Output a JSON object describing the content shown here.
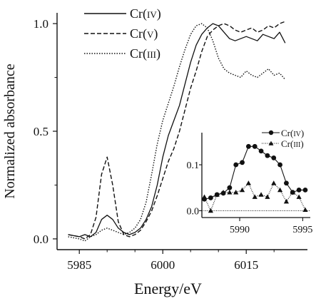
{
  "chart_data": [
    {
      "type": "line",
      "role": "main",
      "xlabel": "Energy/eV",
      "ylabel": "Normalized absorbance",
      "xlim": [
        5981,
        6026
      ],
      "ylim": [
        -0.05,
        1.05
      ],
      "x_ticks": [
        5985,
        6000,
        6015
      ],
      "x_tick_labels": [
        "5985",
        "6000",
        "6015"
      ],
      "y_ticks": [
        0.0,
        0.5,
        1.0
      ],
      "y_tick_labels": [
        "0.0",
        "0.5",
        "1.0"
      ],
      "grid": false,
      "legend_position": "top-left",
      "series": [
        {
          "name": "Cr(IV)",
          "label_main": "Cr(",
          "label_roman": "IV",
          "label_end": ")",
          "style": "solid",
          "points": [
            [
              5983,
              0.02
            ],
            [
              5985,
              0.01
            ],
            [
              5986,
              0.02
            ],
            [
              5987,
              0.01
            ],
            [
              5988,
              0.03
            ],
            [
              5989,
              0.09
            ],
            [
              5990,
              0.11
            ],
            [
              5991,
              0.09
            ],
            [
              5992,
              0.05
            ],
            [
              5993,
              0.03
            ],
            [
              5994,
              0.02
            ],
            [
              5995,
              0.03
            ],
            [
              5996,
              0.05
            ],
            [
              5997,
              0.09
            ],
            [
              5998,
              0.15
            ],
            [
              5999,
              0.25
            ],
            [
              6000,
              0.38
            ],
            [
              6001,
              0.48
            ],
            [
              6002,
              0.55
            ],
            [
              6003,
              0.62
            ],
            [
              6004,
              0.72
            ],
            [
              6005,
              0.82
            ],
            [
              6006,
              0.9
            ],
            [
              6007,
              0.95
            ],
            [
              6008,
              0.98
            ],
            [
              6009,
              1.0
            ],
            [
              6010,
              0.99
            ],
            [
              6011,
              0.96
            ],
            [
              6012,
              0.93
            ],
            [
              6013,
              0.92
            ],
            [
              6014,
              0.93
            ],
            [
              6015,
              0.94
            ],
            [
              6016,
              0.93
            ],
            [
              6017,
              0.92
            ],
            [
              6018,
              0.95
            ],
            [
              6019,
              0.94
            ],
            [
              6020,
              0.93
            ],
            [
              6021,
              0.96
            ],
            [
              6022,
              0.91
            ]
          ]
        },
        {
          "name": "Cr(V)",
          "label_main": "Cr(",
          "label_roman": "V",
          "label_end": ")",
          "style": "dashed",
          "points": [
            [
              5983,
              0.02
            ],
            [
              5985,
              0.01
            ],
            [
              5986,
              0.0
            ],
            [
              5987,
              0.02
            ],
            [
              5988,
              0.1
            ],
            [
              5989,
              0.3
            ],
            [
              5990,
              0.38
            ],
            [
              5991,
              0.25
            ],
            [
              5992,
              0.08
            ],
            [
              5993,
              0.02
            ],
            [
              5994,
              0.01
            ],
            [
              5995,
              0.02
            ],
            [
              5996,
              0.04
            ],
            [
              5997,
              0.08
            ],
            [
              5998,
              0.13
            ],
            [
              5999,
              0.2
            ],
            [
              6000,
              0.28
            ],
            [
              6001,
              0.36
            ],
            [
              6002,
              0.42
            ],
            [
              6003,
              0.5
            ],
            [
              6004,
              0.6
            ],
            [
              6005,
              0.7
            ],
            [
              6006,
              0.78
            ],
            [
              6007,
              0.87
            ],
            [
              6008,
              0.94
            ],
            [
              6009,
              0.97
            ],
            [
              6010,
              0.99
            ],
            [
              6011,
              1.0
            ],
            [
              6012,
              0.99
            ],
            [
              6013,
              0.97
            ],
            [
              6014,
              0.96
            ],
            [
              6015,
              0.97
            ],
            [
              6016,
              0.98
            ],
            [
              6017,
              0.96
            ],
            [
              6018,
              0.97
            ],
            [
              6019,
              0.99
            ],
            [
              6020,
              0.98
            ],
            [
              6021,
              1.0
            ],
            [
              6022,
              1.01
            ]
          ]
        },
        {
          "name": "Cr(III)",
          "label_main": "Cr(",
          "label_roman": "III",
          "label_end": ")",
          "style": "dotted",
          "points": [
            [
              5983,
              0.01
            ],
            [
              5985,
              0.0
            ],
            [
              5986,
              -0.01
            ],
            [
              5987,
              0.01
            ],
            [
              5988,
              0.02
            ],
            [
              5989,
              0.04
            ],
            [
              5990,
              0.05
            ],
            [
              5991,
              0.04
            ],
            [
              5992,
              0.03
            ],
            [
              5993,
              0.02
            ],
            [
              5994,
              0.03
            ],
            [
              5995,
              0.05
            ],
            [
              5996,
              0.09
            ],
            [
              5997,
              0.17
            ],
            [
              5998,
              0.3
            ],
            [
              5999,
              0.44
            ],
            [
              6000,
              0.55
            ],
            [
              6001,
              0.63
            ],
            [
              6002,
              0.71
            ],
            [
              6003,
              0.8
            ],
            [
              6004,
              0.88
            ],
            [
              6005,
              0.95
            ],
            [
              6006,
              0.99
            ],
            [
              6007,
              1.0
            ],
            [
              6008,
              0.98
            ],
            [
              6009,
              0.92
            ],
            [
              6010,
              0.84
            ],
            [
              6011,
              0.79
            ],
            [
              6012,
              0.77
            ],
            [
              6013,
              0.76
            ],
            [
              6014,
              0.75
            ],
            [
              6015,
              0.78
            ],
            [
              6016,
              0.76
            ],
            [
              6017,
              0.75
            ],
            [
              6018,
              0.77
            ],
            [
              6019,
              0.79
            ],
            [
              6020,
              0.76
            ],
            [
              6021,
              0.77
            ],
            [
              6022,
              0.74
            ]
          ]
        }
      ]
    },
    {
      "type": "line",
      "role": "inset",
      "xlim": [
        5987,
        5995.6
      ],
      "ylim": [
        -0.015,
        0.17
      ],
      "x_ticks": [
        5990,
        5995
      ],
      "x_tick_labels": [
        "5990",
        "5995"
      ],
      "y_ticks": [
        0.0,
        0.1
      ],
      "y_tick_labels": [
        "0.0",
        "0.1"
      ],
      "legend_position": "top-right",
      "series": [
        {
          "name": "Cr(IV)",
          "label_main": "Cr(",
          "label_roman": "IV",
          "label_end": ")",
          "style": "solid",
          "marker": "circle",
          "points": [
            [
              5987.2,
              0.025
            ],
            [
              5987.7,
              0.028
            ],
            [
              5988.2,
              0.035
            ],
            [
              5988.7,
              0.038
            ],
            [
              5989.2,
              0.05
            ],
            [
              5989.7,
              0.1
            ],
            [
              5990.2,
              0.105
            ],
            [
              5990.7,
              0.14
            ],
            [
              5991.2,
              0.14
            ],
            [
              5991.7,
              0.13
            ],
            [
              5992.2,
              0.12
            ],
            [
              5992.7,
              0.115
            ],
            [
              5993.2,
              0.1
            ],
            [
              5993.7,
              0.06
            ],
            [
              5994.2,
              0.04
            ],
            [
              5994.7,
              0.045
            ],
            [
              5995.2,
              0.045
            ]
          ]
        },
        {
          "name": "Cr(III)",
          "label_main": "Cr(",
          "label_roman": "III",
          "label_end": ")",
          "style": "dotted",
          "marker": "triangle",
          "points": [
            [
              5987.2,
              0.03
            ],
            [
              5987.7,
              0.0
            ],
            [
              5988.2,
              0.035
            ],
            [
              5988.7,
              0.04
            ],
            [
              5989.2,
              0.04
            ],
            [
              5989.7,
              0.04
            ],
            [
              5990.2,
              0.045
            ],
            [
              5990.7,
              0.06
            ],
            [
              5991.2,
              0.03
            ],
            [
              5991.7,
              0.035
            ],
            [
              5992.2,
              0.03
            ],
            [
              5992.7,
              0.06
            ],
            [
              5993.2,
              0.045
            ],
            [
              5993.7,
              0.02
            ],
            [
              5994.2,
              0.04
            ],
            [
              5994.7,
              0.03
            ],
            [
              5995.2,
              0.002
            ]
          ]
        }
      ]
    }
  ]
}
